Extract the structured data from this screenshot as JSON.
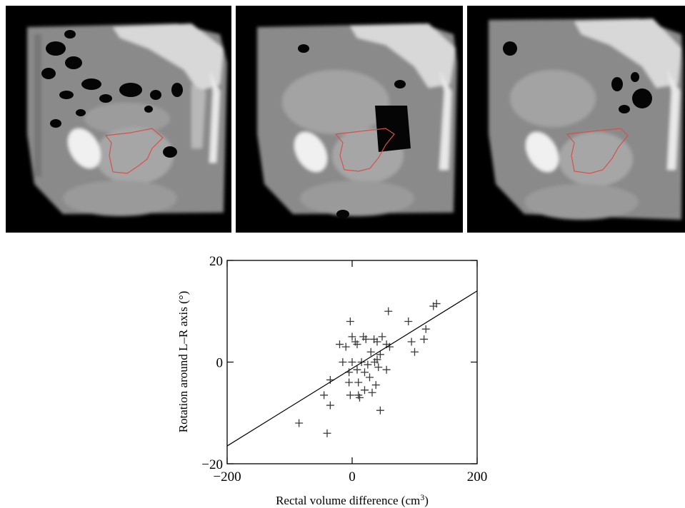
{
  "ct_panels": [
    {
      "name": "ct-sagittal-scan-1"
    },
    {
      "name": "ct-sagittal-scan-2"
    },
    {
      "name": "ct-sagittal-scan-3"
    }
  ],
  "colors": {
    "contour": "#d6504a",
    "marker": "#3a3a3a",
    "fit_line": "#000000",
    "background": "#ffffff",
    "scan_background": "#000000"
  },
  "chart_data": {
    "type": "scatter",
    "title": "",
    "xlabel": "Rectal volume difference (cm",
    "xlabel_superscript": "3",
    "xlabel_suffix": ")",
    "ylabel": "Rotation around L–R axis (°)",
    "xlim": [
      -200,
      200
    ],
    "ylim": [
      -20,
      20
    ],
    "xticks": [
      -200,
      0,
      200
    ],
    "yticks": [
      -20,
      0,
      20
    ],
    "marker": "plus",
    "grid": false,
    "fit_line": {
      "x": [
        -200,
        200
      ],
      "y": [
        -16.5,
        14
      ]
    },
    "points": [
      {
        "x": -85,
        "y": -12
      },
      {
        "x": -40,
        "y": -14
      },
      {
        "x": -45,
        "y": -6.5
      },
      {
        "x": -35,
        "y": -8.5
      },
      {
        "x": -35,
        "y": -3.5
      },
      {
        "x": -20,
        "y": 3.5
      },
      {
        "x": -15,
        "y": 0
      },
      {
        "x": -10,
        "y": 3
      },
      {
        "x": -5,
        "y": -2
      },
      {
        "x": -5,
        "y": -4
      },
      {
        "x": -3,
        "y": -6.5
      },
      {
        "x": -3,
        "y": 8
      },
      {
        "x": 0,
        "y": 5
      },
      {
        "x": 0,
        "y": 0
      },
      {
        "x": 5,
        "y": 4
      },
      {
        "x": 8,
        "y": 3.5
      },
      {
        "x": 8,
        "y": -1.5
      },
      {
        "x": 10,
        "y": -4
      },
      {
        "x": 10,
        "y": -6.5
      },
      {
        "x": 12,
        "y": -7
      },
      {
        "x": 15,
        "y": 0
      },
      {
        "x": 18,
        "y": 5
      },
      {
        "x": 20,
        "y": -2
      },
      {
        "x": 20,
        "y": -5.5
      },
      {
        "x": 22,
        "y": 4.5
      },
      {
        "x": 25,
        "y": -0.5
      },
      {
        "x": 28,
        "y": -3
      },
      {
        "x": 30,
        "y": 2
      },
      {
        "x": 32,
        "y": -6
      },
      {
        "x": 35,
        "y": 4.5
      },
      {
        "x": 36,
        "y": 0
      },
      {
        "x": 38,
        "y": -4.5
      },
      {
        "x": 40,
        "y": 0.5
      },
      {
        "x": 40,
        "y": 4
      },
      {
        "x": 42,
        "y": -1
      },
      {
        "x": 45,
        "y": 1.5
      },
      {
        "x": 45,
        "y": -9.5
      },
      {
        "x": 48,
        "y": 5
      },
      {
        "x": 55,
        "y": -1.5
      },
      {
        "x": 55,
        "y": 3.5
      },
      {
        "x": 58,
        "y": 10
      },
      {
        "x": 60,
        "y": 3
      },
      {
        "x": 90,
        "y": 8
      },
      {
        "x": 95,
        "y": 4
      },
      {
        "x": 100,
        "y": 2
      },
      {
        "x": 115,
        "y": 4.5
      },
      {
        "x": 118,
        "y": 6.5
      },
      {
        "x": 130,
        "y": 11
      },
      {
        "x": 135,
        "y": 11.5
      }
    ]
  }
}
